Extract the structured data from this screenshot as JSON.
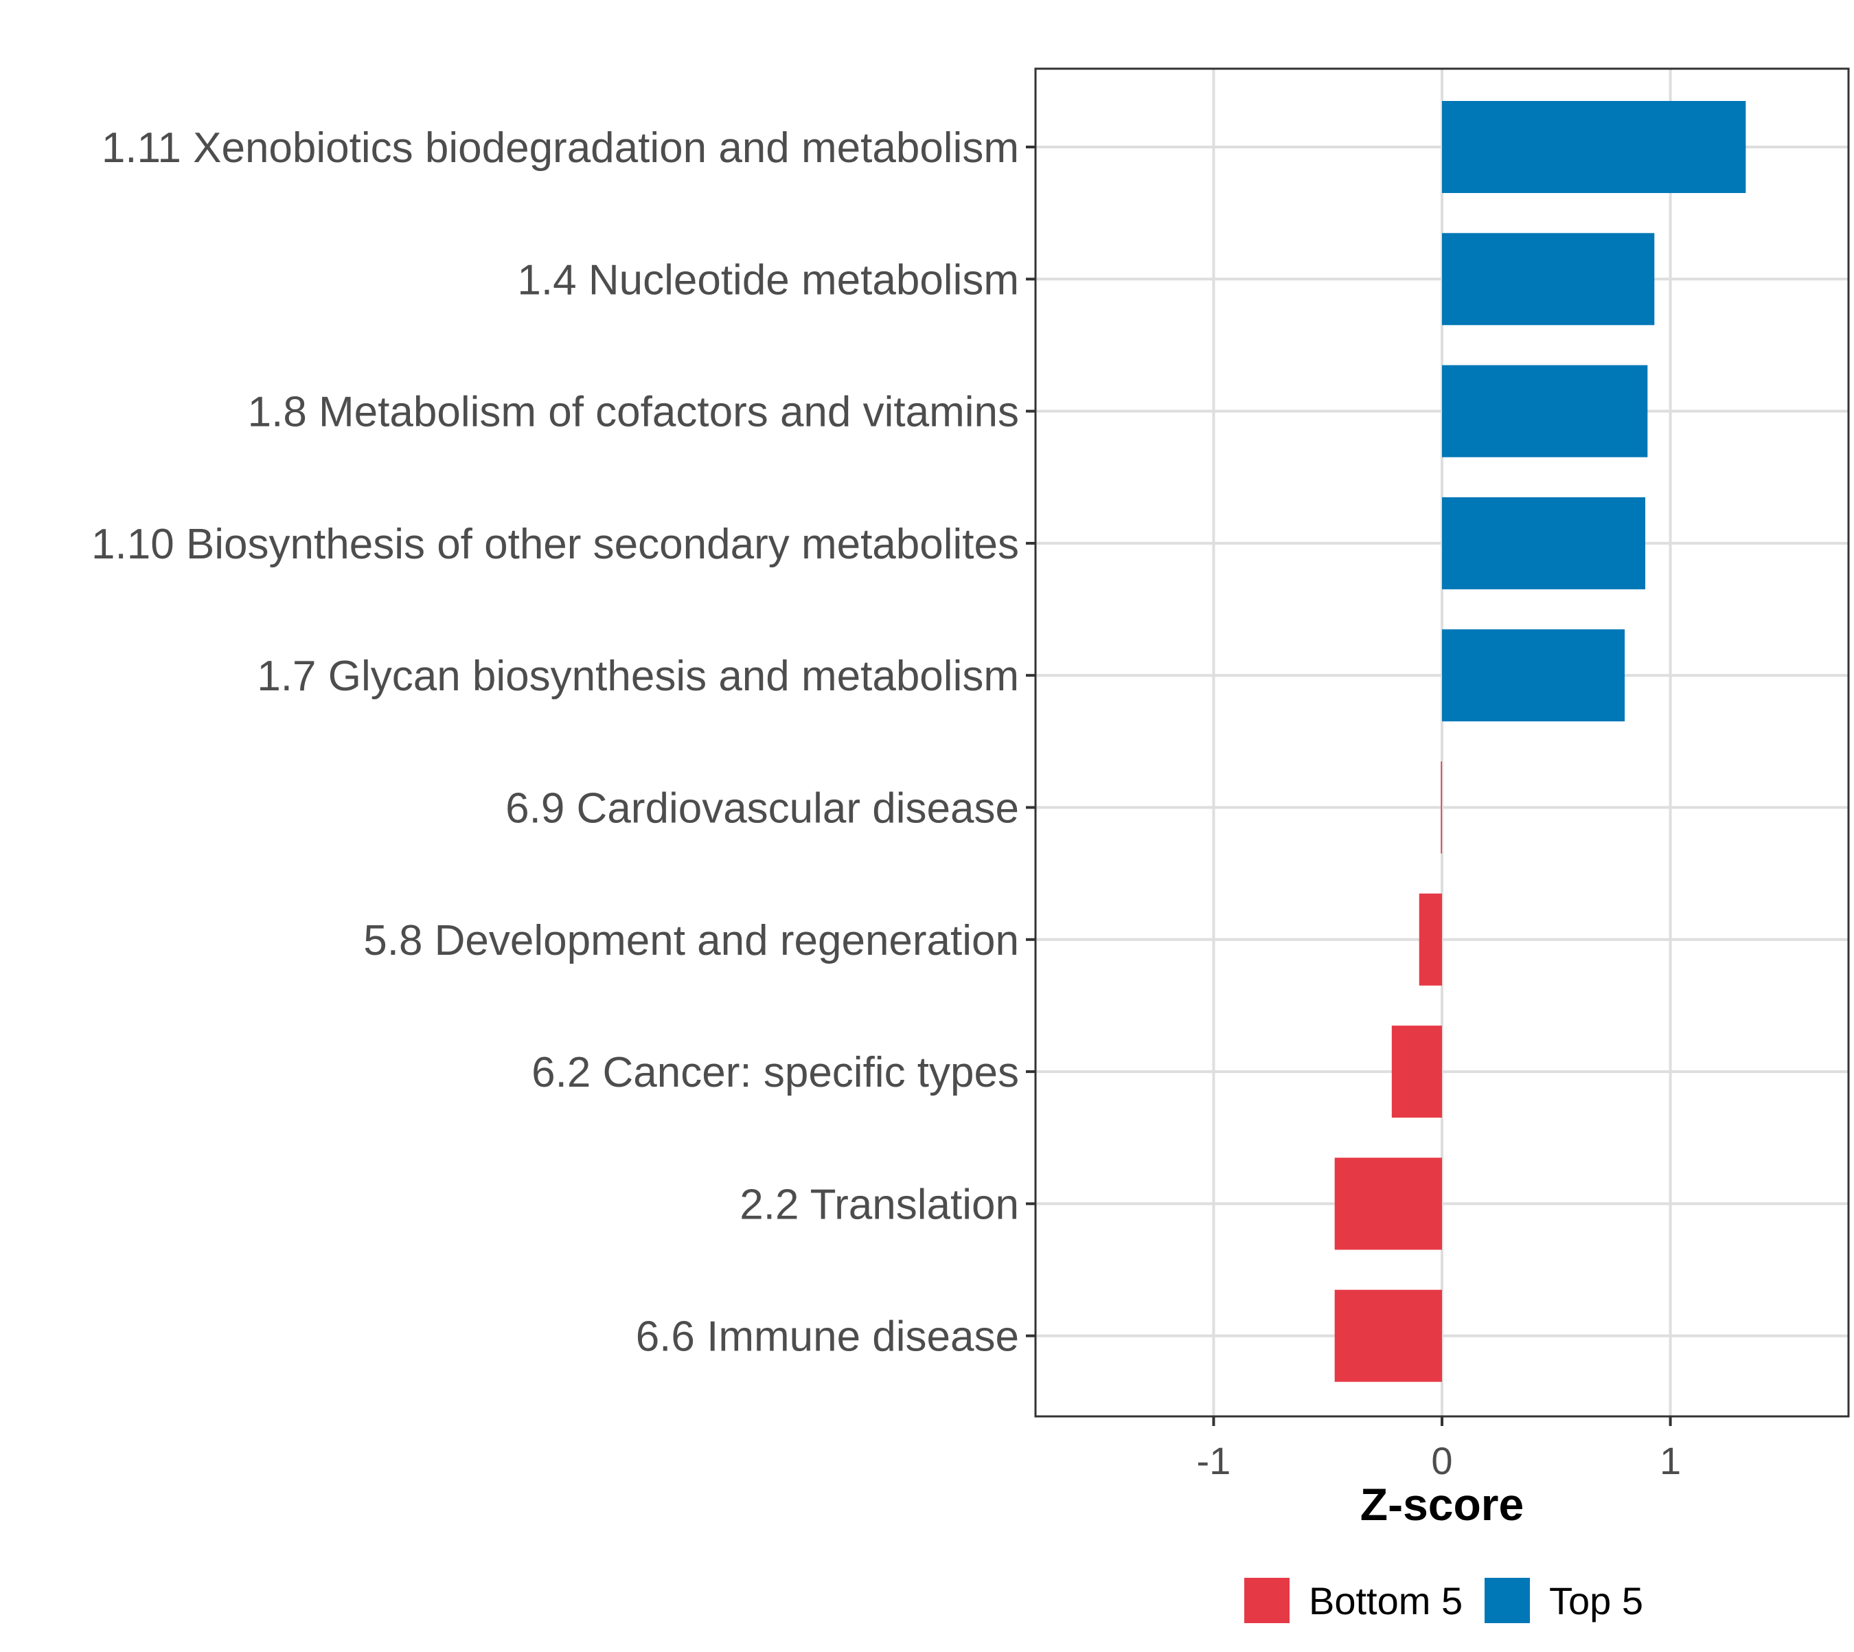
{
  "chart_data": {
    "type": "bar",
    "orientation": "horizontal",
    "title": "",
    "xlabel": "Z-score",
    "ylabel": "",
    "xlim": [
      -1.78,
      1.78
    ],
    "xticks": [
      -1,
      0,
      1
    ],
    "xtick_labels": [
      "-1",
      "0",
      "1"
    ],
    "grid": true,
    "categories": [
      "1.11 Xenobiotics biodegradation and metabolism",
      "1.4 Nucleotide metabolism",
      "1.8 Metabolism of cofactors and vitamins",
      "1.10 Biosynthesis of other secondary metabolites",
      "1.7 Glycan biosynthesis and metabolism",
      "6.9 Cardiovascular disease",
      "5.8 Development and regeneration",
      "6.2 Cancer: specific types",
      "2.2 Translation",
      "6.6 Immune disease"
    ],
    "values": [
      1.33,
      0.93,
      0.9,
      0.89,
      0.8,
      -0.005,
      -0.1,
      -0.22,
      -0.47,
      -0.47
    ],
    "groups": [
      "Top 5",
      "Top 5",
      "Top 5",
      "Top 5",
      "Top 5",
      "Bottom 5",
      "Bottom 5",
      "Bottom 5",
      "Bottom 5",
      "Bottom 5"
    ],
    "legend": {
      "position": "bottom",
      "entries": [
        {
          "label": "Bottom 5",
          "color": "#E63946"
        },
        {
          "label": "Top 5",
          "color": "#0077B6"
        }
      ]
    }
  }
}
